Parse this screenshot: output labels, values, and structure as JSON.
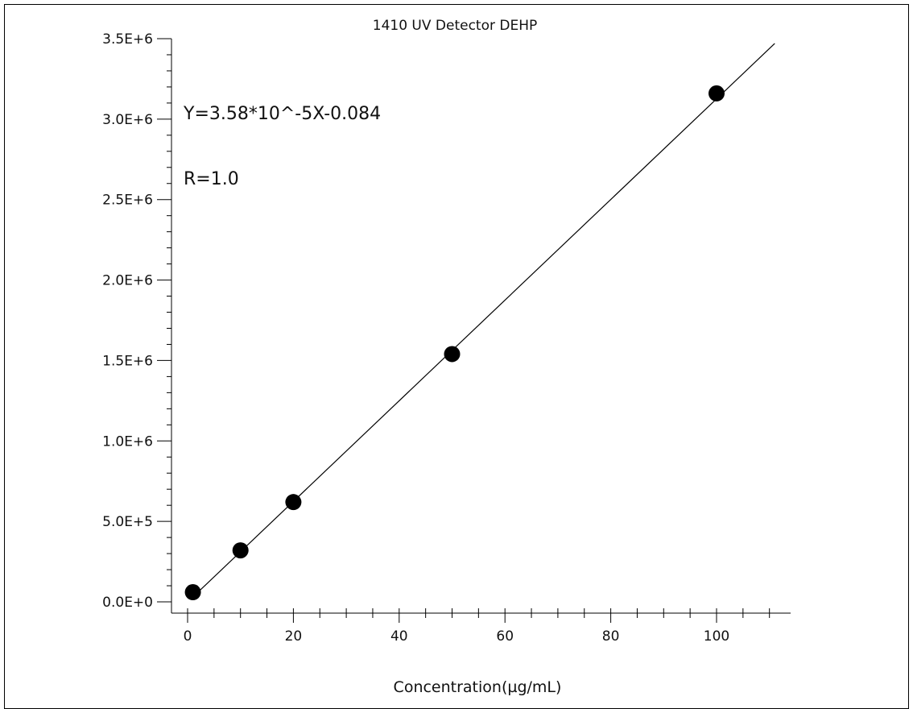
{
  "chart_data": {
    "type": "scatter",
    "title": "1410 UV Detector DEHP",
    "xlabel": "Concentration(µg/mL)",
    "ylabel": "",
    "xlim": [
      -3,
      115
    ],
    "ylim": [
      -0.1,
      3.5
    ],
    "x_ticks": [
      0,
      20,
      40,
      60,
      80,
      100
    ],
    "x_tick_labels": [
      "0",
      "20",
      "40",
      "60",
      "80",
      "100"
    ],
    "y_ticks": [
      0.0,
      0.5,
      1.0,
      1.5,
      2.0,
      2.5,
      3.0,
      3.5
    ],
    "y_tick_labels": [
      "0.0E+0",
      "5.0E+5",
      "1.0E+6",
      "1.5E+6",
      "2.0E+6",
      "2.5E+6",
      "3.0E+6",
      "3.5E+6"
    ],
    "y_scale_note": "values in units of 1E+6",
    "series": [
      {
        "points": [
          {
            "x": 1,
            "y": 0.06
          },
          {
            "x": 10,
            "y": 0.32
          },
          {
            "x": 20,
            "y": 0.62
          },
          {
            "x": 50,
            "y": 1.54
          },
          {
            "x": 100,
            "y": 3.16
          }
        ]
      }
    ],
    "fit_line": {
      "x": [
        1,
        111
      ],
      "y": [
        0.03,
        3.47
      ]
    },
    "annotations": [
      "Y=3.58*10^-5X-0.084",
      "R=1.0"
    ],
    "grid": false
  }
}
